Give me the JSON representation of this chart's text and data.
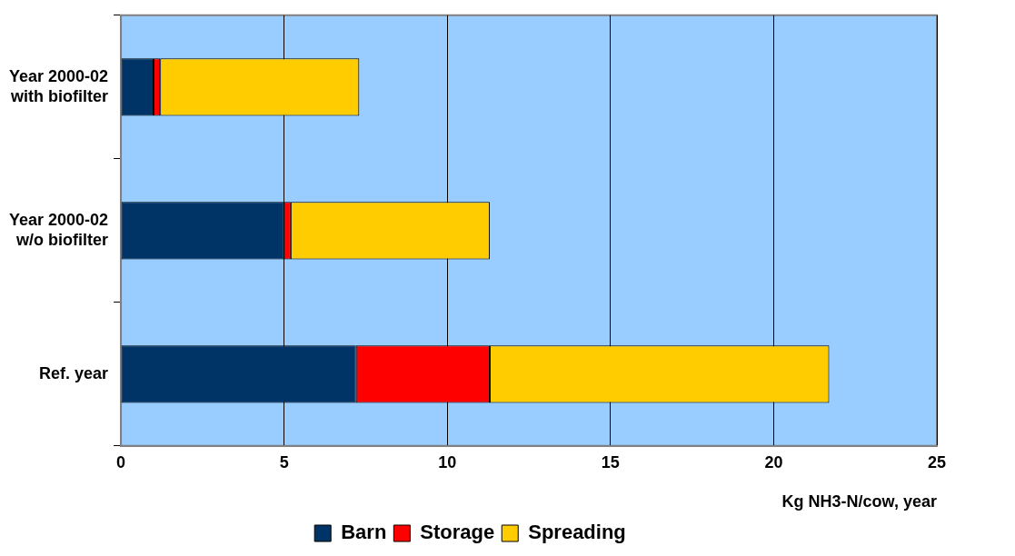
{
  "chart_data": {
    "type": "bar",
    "orientation": "horizontal",
    "stacked": true,
    "categories": [
      "Year 2000-02 with biofilter",
      "Year 2000-02 w/o biofilter",
      "Ref. year"
    ],
    "series": [
      {
        "name": "Barn",
        "color": "#003366",
        "values": [
          1.0,
          5.0,
          7.2
        ]
      },
      {
        "name": "Storage",
        "color": "#ff0000",
        "values": [
          0.2,
          0.2,
          4.1
        ]
      },
      {
        "name": "Spreading",
        "color": "#ffcc00",
        "values": [
          6.1,
          6.1,
          10.4
        ]
      }
    ],
    "xlabel": "Kg NH3-N/cow, year",
    "xlim": [
      0,
      25
    ],
    "xticks": [
      0,
      5,
      10,
      15,
      20,
      25
    ],
    "grid": "x",
    "legend": "bottom"
  }
}
